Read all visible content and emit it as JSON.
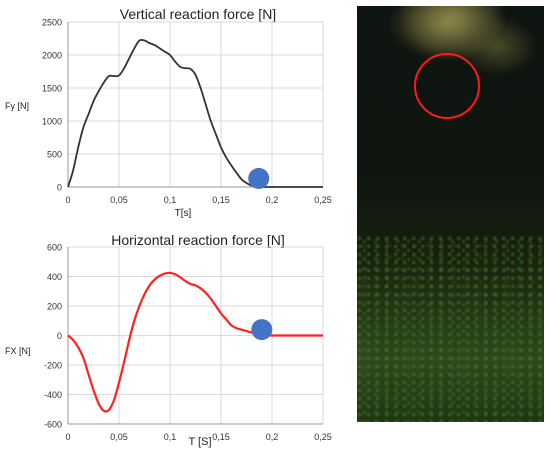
{
  "colors": {
    "vertical_line": "#333333",
    "horizontal_line": "#ff2020",
    "marker": "#4472c4",
    "ring": "#ff1a1a",
    "grid": "#d9d9d9"
  },
  "chart_data": [
    {
      "type": "line",
      "title": "Vertical reaction force [N]",
      "xlabel": "T[s]",
      "ylabel": "Fy [N]",
      "xlim": [
        0,
        0.25
      ],
      "ylim": [
        0,
        2500
      ],
      "x_ticks": [
        "0",
        "0,05",
        "0,1",
        "0,15",
        "0,2",
        "0,25"
      ],
      "y_ticks": [
        "0",
        "500",
        "1000",
        "1500",
        "2000",
        "2500"
      ],
      "grid": true,
      "series": [
        {
          "x": [
            0,
            0.005,
            0.01,
            0.015,
            0.02,
            0.025,
            0.03,
            0.035,
            0.04,
            0.045,
            0.05,
            0.055,
            0.06,
            0.065,
            0.07,
            0.075,
            0.08,
            0.085,
            0.09,
            0.095,
            0.1,
            0.105,
            0.11,
            0.115,
            0.12,
            0.125,
            0.13,
            0.135,
            0.14,
            0.145,
            0.15,
            0.155,
            0.16,
            0.165,
            0.17,
            0.175,
            0.18,
            0.185,
            0.19,
            0.195,
            0.2,
            0.25
          ],
          "y": [
            0,
            250,
            600,
            900,
            1100,
            1300,
            1450,
            1580,
            1680,
            1680,
            1690,
            1800,
            1950,
            2100,
            2220,
            2220,
            2180,
            2150,
            2100,
            2050,
            2000,
            1900,
            1820,
            1800,
            1790,
            1700,
            1500,
            1250,
            1000,
            800,
            600,
            450,
            330,
            220,
            120,
            60,
            20,
            5,
            0,
            0,
            0,
            0
          ]
        }
      ],
      "markers": [
        {
          "x": 0.187,
          "y": 130
        }
      ]
    },
    {
      "type": "line",
      "title": "Horizontal reaction force [N]",
      "xlabel": "T [S]",
      "ylabel": "FX [N]",
      "xlim": [
        0,
        0.25
      ],
      "ylim": [
        -600,
        600
      ],
      "x_ticks": [
        "0",
        "0,05",
        "0,1",
        "0,15",
        "0,2",
        "0,25"
      ],
      "y_ticks": [
        "-600",
        "-400",
        "-200",
        "0",
        "200",
        "400",
        "600"
      ],
      "grid": true,
      "series": [
        {
          "x": [
            0,
            0.005,
            0.01,
            0.015,
            0.02,
            0.025,
            0.03,
            0.035,
            0.04,
            0.045,
            0.05,
            0.055,
            0.06,
            0.065,
            0.07,
            0.075,
            0.08,
            0.085,
            0.09,
            0.095,
            0.1,
            0.105,
            0.11,
            0.115,
            0.12,
            0.125,
            0.13,
            0.135,
            0.14,
            0.145,
            0.15,
            0.155,
            0.16,
            0.165,
            0.17,
            0.175,
            0.18,
            0.185,
            0.19,
            0.2,
            0.25
          ],
          "y": [
            0,
            -30,
            -80,
            -150,
            -260,
            -370,
            -460,
            -510,
            -505,
            -440,
            -320,
            -180,
            -30,
            100,
            200,
            280,
            340,
            380,
            405,
            420,
            425,
            415,
            395,
            370,
            350,
            340,
            320,
            290,
            250,
            200,
            150,
            110,
            70,
            50,
            40,
            30,
            20,
            10,
            0,
            0,
            0
          ]
        }
      ],
      "markers": [
        {
          "x": 0.19,
          "y": 40
        }
      ]
    }
  ]
}
